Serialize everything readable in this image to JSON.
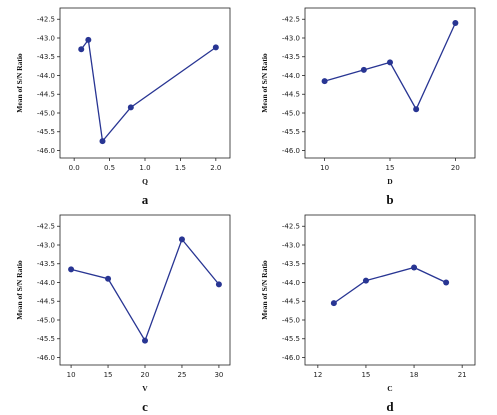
{
  "chart_data": [
    {
      "type": "line",
      "panel_label": "a",
      "xlabel": "Q",
      "ylabel": "Mean of S/N Ratio",
      "xlim": [
        -0.2,
        2.2
      ],
      "ylim": [
        -46.2,
        -42.2
      ],
      "x_ticks": [
        0.0,
        0.5,
        1.0,
        1.5,
        2.0
      ],
      "x_tick_labels": [
        "0.0",
        "0.5",
        "1.0",
        "1.5",
        "2.0"
      ],
      "y_ticks": [
        -42.5,
        -43.0,
        -43.5,
        -44.0,
        -44.5,
        -45.0,
        -45.5,
        -46.0
      ],
      "y_tick_labels": [
        "-42.5",
        "-43.0",
        "-43.5",
        "-44.0",
        "-44.5",
        "-45.0",
        "-45.5",
        "-46.0"
      ],
      "x": [
        0.1,
        0.2,
        0.4,
        0.8,
        2.0
      ],
      "values": [
        -43.3,
        -43.05,
        -45.75,
        -44.85,
        -43.25
      ],
      "color": "#283593"
    },
    {
      "type": "line",
      "panel_label": "b",
      "xlabel": "D",
      "ylabel": "Mean of S/N Ratio",
      "xlim": [
        8.5,
        21.5
      ],
      "ylim": [
        -46.2,
        -42.2
      ],
      "x_ticks": [
        10,
        15,
        20
      ],
      "x_tick_labels": [
        "10",
        "15",
        "20"
      ],
      "y_ticks": [
        -42.5,
        -43.0,
        -43.5,
        -44.0,
        -44.5,
        -45.0,
        -45.5,
        -46.0
      ],
      "y_tick_labels": [
        "-42.5",
        "-43.0",
        "-43.5",
        "-44.0",
        "-44.5",
        "-45.0",
        "-45.5",
        "-46.0"
      ],
      "x": [
        10,
        13,
        15,
        17,
        20
      ],
      "values": [
        -44.15,
        -43.85,
        -43.65,
        -44.9,
        -42.6
      ],
      "color": "#283593"
    },
    {
      "type": "line",
      "panel_label": "c",
      "xlabel": "V",
      "ylabel": "Mean of S/N Ratio",
      "xlim": [
        8.5,
        31.5
      ],
      "ylim": [
        -46.2,
        -42.2
      ],
      "x_ticks": [
        10,
        15,
        20,
        25,
        30
      ],
      "x_tick_labels": [
        "10",
        "15",
        "20",
        "25",
        "30"
      ],
      "y_ticks": [
        -42.5,
        -43.0,
        -43.5,
        -44.0,
        -44.5,
        -45.0,
        -45.5,
        -46.0
      ],
      "y_tick_labels": [
        "-42.5",
        "-43.0",
        "-43.5",
        "-44.0",
        "-44.5",
        "-45.0",
        "-45.5",
        "-46.0"
      ],
      "x": [
        10,
        15,
        20,
        25,
        30
      ],
      "values": [
        -43.65,
        -43.9,
        -45.55,
        -42.85,
        -44.05
      ],
      "color": "#283593"
    },
    {
      "type": "line",
      "panel_label": "d",
      "xlabel": "C",
      "ylabel": "Mean of S/N Ratio",
      "xlim": [
        11.2,
        21.8
      ],
      "ylim": [
        -46.2,
        -42.2
      ],
      "x_ticks": [
        12,
        15,
        18,
        21
      ],
      "x_tick_labels": [
        "12",
        "15",
        "18",
        "21"
      ],
      "y_ticks": [
        -42.5,
        -43.0,
        -43.5,
        -44.0,
        -44.5,
        -45.0,
        -45.5,
        -46.0
      ],
      "y_tick_labels": [
        "-42.5",
        "-43.0",
        "-43.5",
        "-44.0",
        "-44.5",
        "-45.0",
        "-45.5",
        "-46.0"
      ],
      "x": [
        13,
        15,
        18,
        20
      ],
      "values": [
        -44.55,
        -43.95,
        -43.6,
        -44.0
      ],
      "color": "#283593"
    }
  ]
}
